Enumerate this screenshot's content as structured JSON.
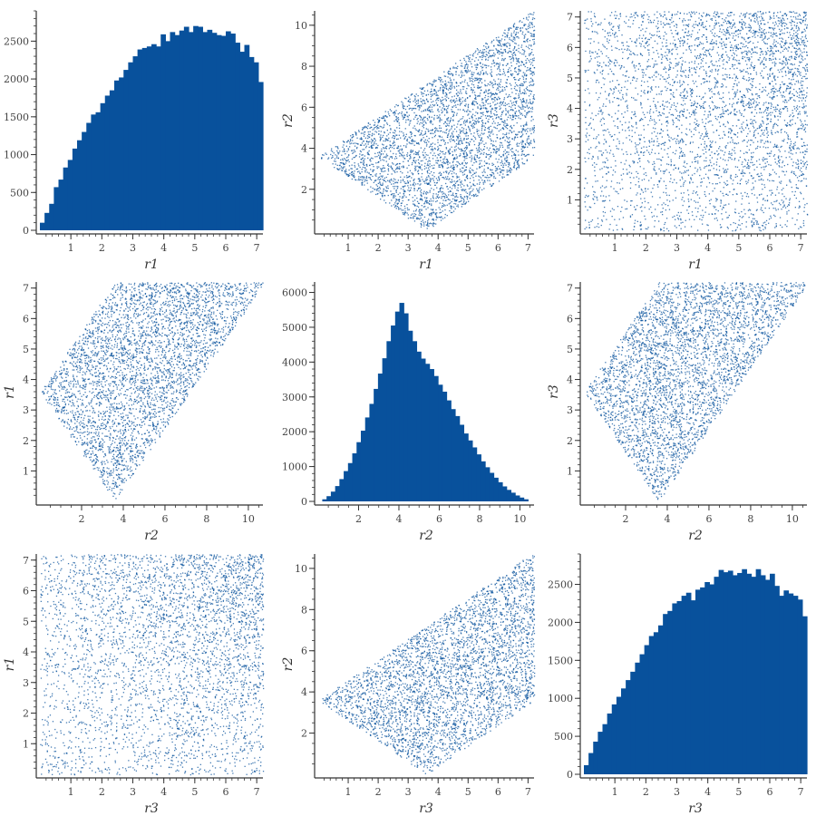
{
  "chart_data": [
    {
      "type": "bar",
      "panel": "r1-histogram",
      "xlabel": "r1",
      "ylabel": "",
      "xlim": [
        0,
        7.2
      ],
      "ylim": [
        0,
        2900
      ],
      "xticks": [
        "1",
        "2",
        "3",
        "4",
        "5",
        "6",
        "7"
      ],
      "yticks": [
        "0",
        "500",
        "1000",
        "1500",
        "2000",
        "2500"
      ],
      "bin_edges_range": [
        0,
        7.2
      ],
      "values": [
        100,
        230,
        350,
        570,
        670,
        830,
        930,
        1080,
        1190,
        1300,
        1420,
        1530,
        1560,
        1680,
        1780,
        1850,
        1980,
        2020,
        2120,
        2220,
        2300,
        2390,
        2410,
        2430,
        2460,
        2430,
        2590,
        2500,
        2620,
        2580,
        2640,
        2690,
        2620,
        2700,
        2690,
        2620,
        2650,
        2610,
        2580,
        2570,
        2630,
        2600,
        2480,
        2360,
        2450,
        2290,
        2220,
        1960
      ],
      "color": "#08519c"
    },
    {
      "type": "scatter",
      "panel": "r2-vs-r1",
      "xlabel": "r1",
      "ylabel": "r2",
      "xlim": [
        0,
        7.2
      ],
      "ylim": [
        0,
        10.7
      ],
      "xticks": [
        "1",
        "2",
        "3",
        "4",
        "5",
        "6",
        "7"
      ],
      "yticks": [
        "2",
        "4",
        "6",
        "8",
        "10"
      ],
      "region": "r2 between |r1 - 3.6| and r1 + 3.6",
      "color": "#08519c"
    },
    {
      "type": "scatter",
      "panel": "r3-vs-r1",
      "xlabel": "r1",
      "ylabel": "r3",
      "xlim": [
        0,
        7.2
      ],
      "ylim": [
        0,
        7.2
      ],
      "xticks": [
        "1",
        "2",
        "3",
        "4",
        "5",
        "6",
        "7"
      ],
      "yticks": [
        "1",
        "2",
        "3",
        "4",
        "5",
        "6",
        "7"
      ],
      "region": "uniform square, denser toward upper-right",
      "color": "#08519c"
    },
    {
      "type": "scatter",
      "panel": "r1-vs-r2",
      "xlabel": "r2",
      "ylabel": "r1",
      "xlim": [
        0,
        10.7
      ],
      "ylim": [
        0,
        7.2
      ],
      "xticks": [
        "2",
        "4",
        "6",
        "8",
        "10"
      ],
      "yticks": [
        "1",
        "2",
        "3",
        "4",
        "5",
        "6",
        "7"
      ],
      "region": "r1 between |r2 - 3.6| and min(7.2, r2 + 3.6)",
      "color": "#08519c"
    },
    {
      "type": "bar",
      "panel": "r2-histogram",
      "xlabel": "r2",
      "ylabel": "",
      "xlim": [
        0,
        10.7
      ],
      "ylim": [
        0,
        6300
      ],
      "xticks": [
        "2",
        "4",
        "6",
        "8",
        "10"
      ],
      "yticks": [
        "0",
        "1000",
        "2000",
        "3000",
        "4000",
        "5000",
        "6000"
      ],
      "bin_edges_range": [
        0.2,
        10.4
      ],
      "values": [
        60,
        150,
        280,
        440,
        640,
        870,
        1100,
        1380,
        1700,
        2030,
        2410,
        2800,
        3230,
        3670,
        4110,
        4600,
        5050,
        5450,
        5700,
        5400,
        4900,
        4600,
        4300,
        4100,
        3950,
        3800,
        3600,
        3350,
        3150,
        2900,
        2650,
        2450,
        2200,
        1950,
        1750,
        1550,
        1350,
        1150,
        980,
        820,
        680,
        550,
        430,
        330,
        250,
        170,
        110,
        60
      ],
      "color": "#08519c"
    },
    {
      "type": "scatter",
      "panel": "r3-vs-r2",
      "xlabel": "r2",
      "ylabel": "r3",
      "xlim": [
        0,
        10.7
      ],
      "ylim": [
        0,
        7.2
      ],
      "xticks": [
        "2",
        "4",
        "6",
        "8",
        "10"
      ],
      "yticks": [
        "1",
        "2",
        "3",
        "4",
        "5",
        "6",
        "7"
      ],
      "region": "r3 between |r2 - 3.6| and min(7.2, r2 + 3.6)",
      "color": "#08519c"
    },
    {
      "type": "scatter",
      "panel": "r1-vs-r3",
      "xlabel": "r3",
      "ylabel": "r1",
      "xlim": [
        0,
        7.2
      ],
      "ylim": [
        0,
        7.2
      ],
      "xticks": [
        "1",
        "2",
        "3",
        "4",
        "5",
        "6",
        "7"
      ],
      "yticks": [
        "1",
        "2",
        "3",
        "4",
        "5",
        "6",
        "7"
      ],
      "region": "uniform square, denser toward upper-right",
      "color": "#08519c"
    },
    {
      "type": "scatter",
      "panel": "r2-vs-r3",
      "xlabel": "r3",
      "ylabel": "r2",
      "xlim": [
        0,
        7.2
      ],
      "ylim": [
        0,
        10.7
      ],
      "xticks": [
        "1",
        "2",
        "3",
        "4",
        "5",
        "6",
        "7"
      ],
      "yticks": [
        "2",
        "4",
        "6",
        "8",
        "10"
      ],
      "region": "r2 between |r3 - 3.6| and r3 + 3.6",
      "color": "#08519c"
    },
    {
      "type": "bar",
      "panel": "r3-histogram",
      "xlabel": "r3",
      "ylabel": "",
      "xlim": [
        0,
        7.2
      ],
      "ylim": [
        0,
        2900
      ],
      "xticks": [
        "1",
        "2",
        "3",
        "4",
        "5",
        "6",
        "7"
      ],
      "yticks": [
        "0",
        "500",
        "1000",
        "1500",
        "2000",
        "2500"
      ],
      "bin_edges_range": [
        0,
        7.2
      ],
      "values": [
        120,
        280,
        430,
        560,
        660,
        800,
        920,
        1020,
        1130,
        1240,
        1350,
        1470,
        1580,
        1700,
        1820,
        1870,
        1960,
        2110,
        2150,
        2250,
        2280,
        2350,
        2390,
        2290,
        2430,
        2460,
        2530,
        2500,
        2600,
        2690,
        2660,
        2680,
        2620,
        2650,
        2700,
        2640,
        2600,
        2700,
        2620,
        2560,
        2640,
        2480,
        2350,
        2420,
        2380,
        2350,
        2300,
        2080
      ],
      "color": "#08519c"
    }
  ]
}
